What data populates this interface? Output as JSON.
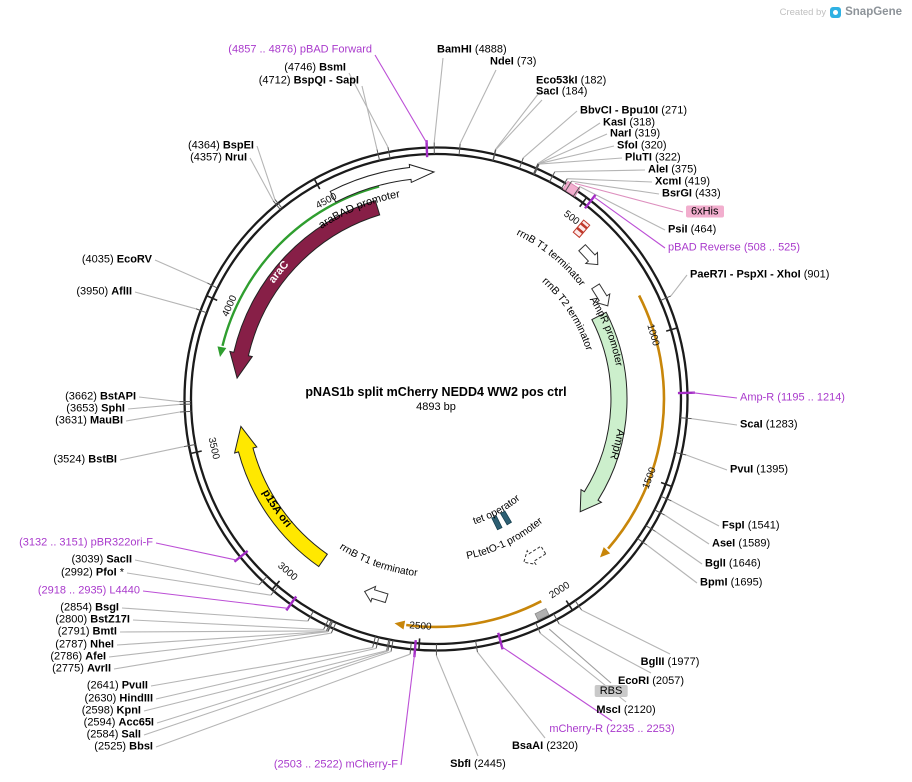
{
  "watermark": {
    "prefix": "Created by",
    "brand": "SnapGene"
  },
  "center": {
    "title": "pNAS1b split mCherry NEDD4 WW2 pos ctrl",
    "subtitle": "4893 bp"
  },
  "ticks": [
    "500",
    "1000",
    "1500",
    "2000",
    "2500",
    "3000",
    "3500",
    "4000",
    "4500"
  ],
  "features": {
    "arabad_promoter": "araBAD promoter",
    "arac": "araC",
    "rrnb_t1_top": "rrnB T1 terminator",
    "rrnb_t2": "rrnB T2 terminator",
    "ampr_promoter": "AmpR promoter",
    "ampr": "AmpR",
    "tet_operator": "tet operator",
    "pltet_promoter": "PLtetO-1 promoter",
    "rrnb_t1_bottom": "rrnB T1 terminator",
    "p15a_ori": "p15A ori",
    "his_tag": "6xHis",
    "rbs": "RBS"
  },
  "colors": {
    "arac": "#871F47",
    "p15a_ori": "#FFE800",
    "ampr": "#CCEFCC",
    "orf": "#C8860A",
    "frame_arrow": "#2F9E2F",
    "primer": "#A93ACC",
    "his_tag_bg": "#F2AECE",
    "rbs_bg": "#C9C9C9"
  },
  "labels": [
    {
      "kind": "primer",
      "pos": "(4857 .. 4876)",
      "name": "pBAD Forward"
    },
    {
      "kind": "enzyme",
      "pos": "(4746)",
      "name": "BsmI"
    },
    {
      "kind": "enzyme",
      "pos": "(4712)",
      "name": "BspQI - SapI"
    },
    {
      "kind": "enzyme",
      "pos": "(4364)",
      "name": "BspEI"
    },
    {
      "kind": "enzyme",
      "pos": "(4357)",
      "name": "NruI"
    },
    {
      "kind": "enzyme",
      "pos": "(4035)",
      "name": "EcoRV"
    },
    {
      "kind": "enzyme",
      "pos": "(3950)",
      "name": "AflII"
    },
    {
      "kind": "enzyme",
      "pos": "(3662)",
      "name": "BstAPI"
    },
    {
      "kind": "enzyme",
      "pos": "(3653)",
      "name": "SphI"
    },
    {
      "kind": "enzyme",
      "pos": "(3631)",
      "name": "MauBI"
    },
    {
      "kind": "enzyme",
      "pos": "(3524)",
      "name": "BstBI"
    },
    {
      "kind": "primer",
      "pos": "(3132 .. 3151)",
      "name": "pBR322ori-F"
    },
    {
      "kind": "enzyme",
      "pos": "(3039)",
      "name": "SacII"
    },
    {
      "kind": "enzyme",
      "pos": "(2992)",
      "name": "PfoI",
      "suffix": " *"
    },
    {
      "kind": "primer",
      "pos": "(2918 .. 2935)",
      "name": "L4440"
    },
    {
      "kind": "enzyme",
      "pos": "(2854)",
      "name": "BsgI"
    },
    {
      "kind": "enzyme",
      "pos": "(2800)",
      "name": "BstZ17I"
    },
    {
      "kind": "enzyme",
      "pos": "(2791)",
      "name": "BmtI"
    },
    {
      "kind": "enzyme",
      "pos": "(2787)",
      "name": "NheI"
    },
    {
      "kind": "enzyme",
      "pos": "(2786)",
      "name": "AfeI"
    },
    {
      "kind": "enzyme",
      "pos": "(2775)",
      "name": "AvrII"
    },
    {
      "kind": "enzyme",
      "pos": "(2641)",
      "name": "PvuII"
    },
    {
      "kind": "enzyme",
      "pos": "(2630)",
      "name": "HindIII"
    },
    {
      "kind": "enzyme",
      "pos": "(2598)",
      "name": "KpnI"
    },
    {
      "kind": "enzyme",
      "pos": "(2594)",
      "name": "Acc65I"
    },
    {
      "kind": "enzyme",
      "pos": "(2584)",
      "name": "SalI"
    },
    {
      "kind": "enzyme",
      "pos": "(2525)",
      "name": "BbsI"
    },
    {
      "kind": "primer",
      "pos": "(2503 .. 2522)",
      "name": "mCherry-F"
    },
    {
      "kind": "enzyme",
      "name": "SbfI",
      "pos": "(2445)"
    },
    {
      "kind": "enzyme",
      "name": "BsaAI",
      "pos": "(2320)"
    },
    {
      "kind": "primer",
      "name": "mCherry-R",
      "pos": "(2235 .. 2253)"
    },
    {
      "kind": "enzyme",
      "name": "MscI",
      "pos": "(2120)"
    },
    {
      "kind": "tag",
      "name": "RBS"
    },
    {
      "kind": "enzyme",
      "name": "EcoRI",
      "pos": "(2057)"
    },
    {
      "kind": "enzyme",
      "name": "BglII",
      "pos": "(1977)"
    },
    {
      "kind": "enzyme",
      "name": "BamHI",
      "pos": "(4888)"
    },
    {
      "kind": "enzyme",
      "name": "NdeI",
      "pos": "(73)"
    },
    {
      "kind": "enzyme",
      "name": "Eco53kI",
      "pos": "(182)"
    },
    {
      "kind": "enzyme",
      "name": "SacI",
      "pos": "(184)"
    },
    {
      "kind": "enzyme",
      "name": "BbvCI - Bpu10I",
      "pos": "(271)"
    },
    {
      "kind": "enzyme",
      "name": "KasI",
      "pos": "(318)"
    },
    {
      "kind": "enzyme",
      "name": "NarI",
      "pos": "(319)"
    },
    {
      "kind": "enzyme",
      "name": "SfoI",
      "pos": "(320)"
    },
    {
      "kind": "enzyme",
      "name": "PluTI",
      "pos": "(322)"
    },
    {
      "kind": "enzyme",
      "name": "AleI",
      "pos": "(375)"
    },
    {
      "kind": "enzyme",
      "name": "XcmI",
      "pos": "(419)"
    },
    {
      "kind": "enzyme",
      "name": "BsrGI",
      "pos": "(433)"
    },
    {
      "kind": "tag",
      "name": "6xHis"
    },
    {
      "kind": "enzyme",
      "name": "PsiI",
      "pos": "(464)"
    },
    {
      "kind": "primer",
      "name": "pBAD Reverse",
      "pos": "(508 .. 525)"
    },
    {
      "kind": "enzyme",
      "name": "PaeR7I - PspXI - XhoI",
      "pos": "(901)"
    },
    {
      "kind": "primer",
      "name": "Amp-R",
      "pos": "(1195 .. 1214)"
    },
    {
      "kind": "enzyme",
      "name": "ScaI",
      "pos": "(1283)"
    },
    {
      "kind": "enzyme",
      "name": "PvuI",
      "pos": "(1395)"
    },
    {
      "kind": "enzyme",
      "name": "FspI",
      "pos": "(1541)"
    },
    {
      "kind": "enzyme",
      "name": "AseI",
      "pos": "(1589)"
    },
    {
      "kind": "enzyme",
      "name": "BglI",
      "pos": "(1646)"
    },
    {
      "kind": "enzyme",
      "name": "BpmI",
      "pos": "(1695)"
    }
  ]
}
